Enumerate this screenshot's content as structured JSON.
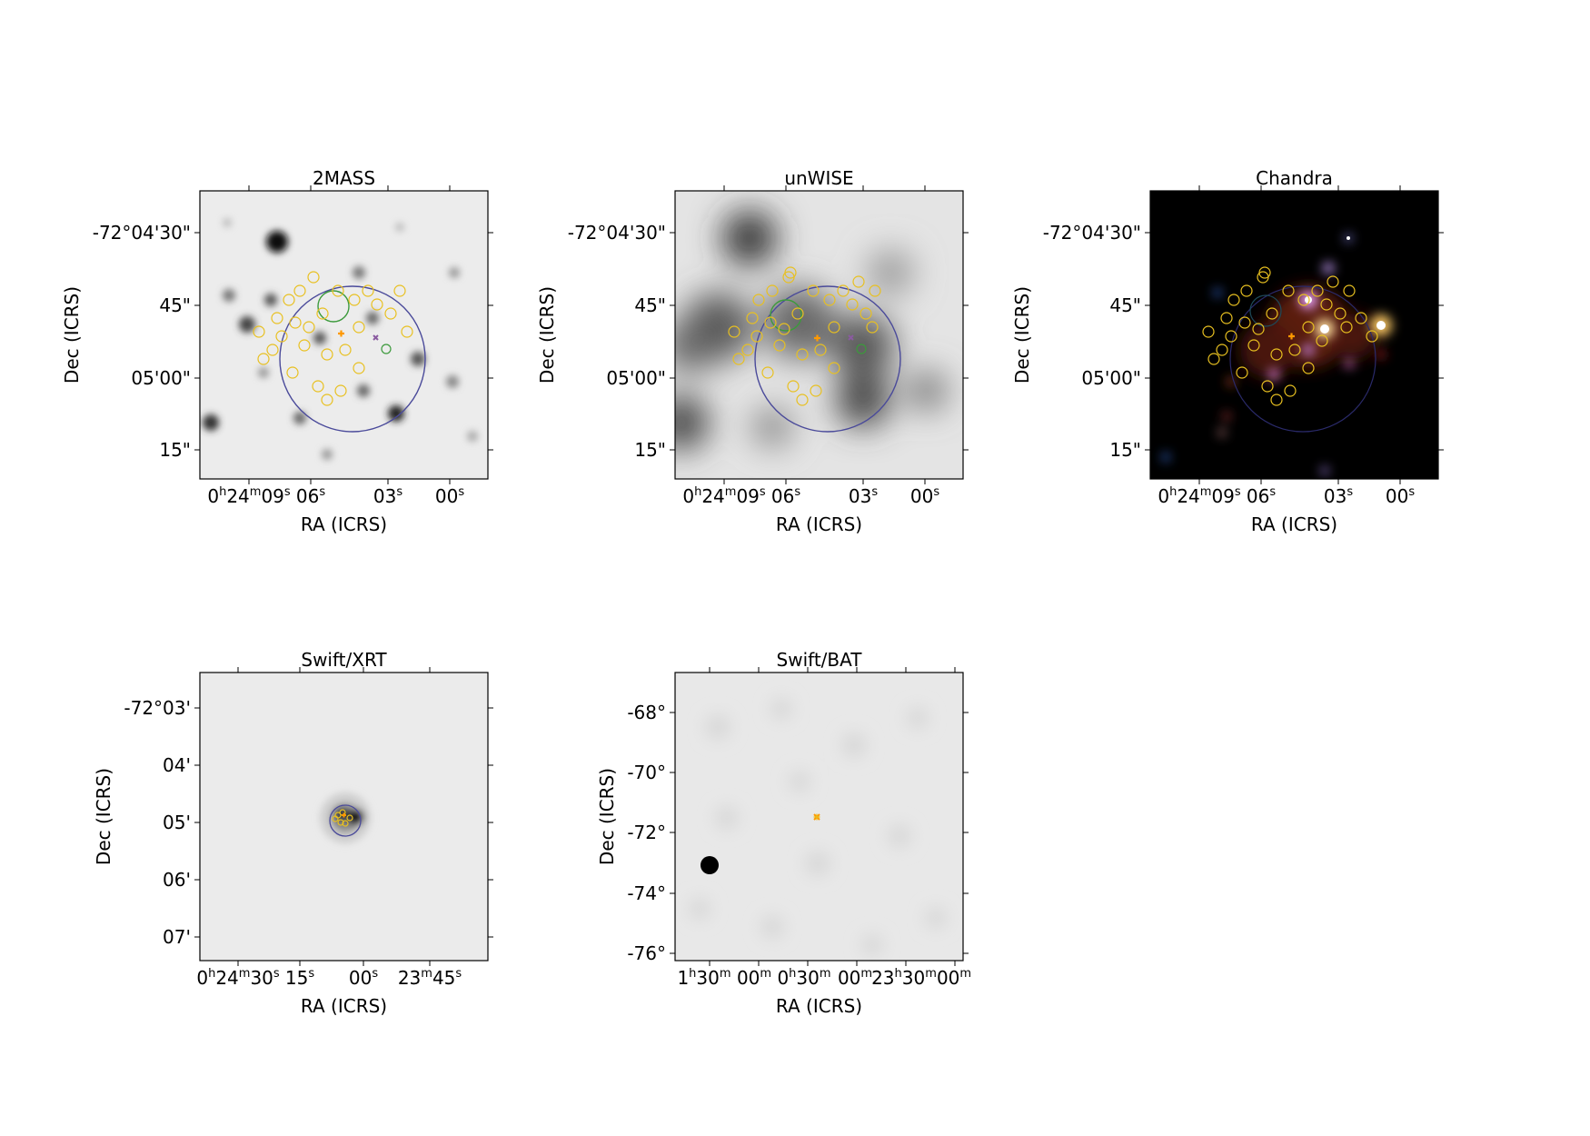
{
  "panels": [
    {
      "id": "2mass",
      "title": "2MASS",
      "xlabel": "RA (ICRS)",
      "ylabel": "Dec (ICRS)",
      "yticks": [
        "-72°04'30\"",
        "45\"",
        "05'00\"",
        "15\""
      ],
      "xticks": [
        {
          "base": "0",
          "sup1": "h",
          "mid": "24",
          "sup2": "m",
          "val": "09",
          "sup3": "s"
        },
        {
          "val": "06",
          "sup3": "s"
        },
        {
          "val": "03",
          "sup3": "s"
        },
        {
          "val": "00",
          "sup3": "s"
        }
      ],
      "background": "grey-starfield"
    },
    {
      "id": "unwise",
      "title": "unWISE",
      "xlabel": "RA (ICRS)",
      "ylabel": "Dec (ICRS)",
      "yticks": [
        "-72°04'30\"",
        "45\"",
        "05'00\"",
        "15\""
      ],
      "xticks": [
        {
          "base": "0",
          "sup1": "h",
          "mid": "24",
          "sup2": "m",
          "val": "09",
          "sup3": "s"
        },
        {
          "val": "06",
          "sup3": "s"
        },
        {
          "val": "03",
          "sup3": "s"
        },
        {
          "val": "00",
          "sup3": "s"
        }
      ],
      "background": "grey-blurred"
    },
    {
      "id": "chandra",
      "title": "Chandra",
      "xlabel": "RA (ICRS)",
      "ylabel": "Dec (ICRS)",
      "yticks": [
        "-72°04'30\"",
        "45\"",
        "05'00\"",
        "15\""
      ],
      "xticks": [
        {
          "base": "0",
          "sup1": "h",
          "mid": "24",
          "sup2": "m",
          "val": "09",
          "sup3": "s"
        },
        {
          "val": "06",
          "sup3": "s"
        },
        {
          "val": "03",
          "sup3": "s"
        },
        {
          "val": "00",
          "sup3": "s"
        }
      ],
      "background": "black-xray"
    },
    {
      "id": "swift-xrt",
      "title": "Swift/XRT",
      "xlabel": "RA (ICRS)",
      "ylabel": "Dec (ICRS)",
      "yticks": [
        "-72°03'",
        "04'",
        "05'",
        "06'",
        "07'"
      ],
      "xticks": [
        {
          "base": "0",
          "sup1": "h",
          "mid": "24",
          "sup2": "m",
          "val": "30",
          "sup3": "s"
        },
        {
          "val": "15",
          "sup3": "s"
        },
        {
          "val": "00",
          "sup3": "s"
        },
        {
          "mid": "23",
          "sup2": "m",
          "val": "45",
          "sup3": "s"
        }
      ],
      "background": "light-grey"
    },
    {
      "id": "swift-bat",
      "title": "Swift/BAT",
      "xlabel": "RA (ICRS)",
      "ylabel": "Dec (ICRS)",
      "yticks": [
        "-68°",
        "-70°",
        "-72°",
        "-74°",
        "-76°"
      ],
      "xticks": [
        {
          "base": "1",
          "sup1": "h",
          "val": "30",
          "sup3": "m"
        },
        {
          "val": "00",
          "sup3": "m"
        },
        {
          "base": "0",
          "sup1": "h",
          "val": "30",
          "sup3": "m"
        },
        {
          "val": "00",
          "sup3": "m"
        },
        {
          "base": "23",
          "sup1": "h",
          "val": "30",
          "sup3": "m"
        },
        {
          "val": "00",
          "sup3": "m"
        }
      ],
      "background": "light-grey-noise"
    }
  ],
  "colors": {
    "catalog_circle": "#e8c020",
    "big_circle": "#4a4a9a",
    "green_circle": "#3c9a3c",
    "cross": "#ff9900"
  }
}
